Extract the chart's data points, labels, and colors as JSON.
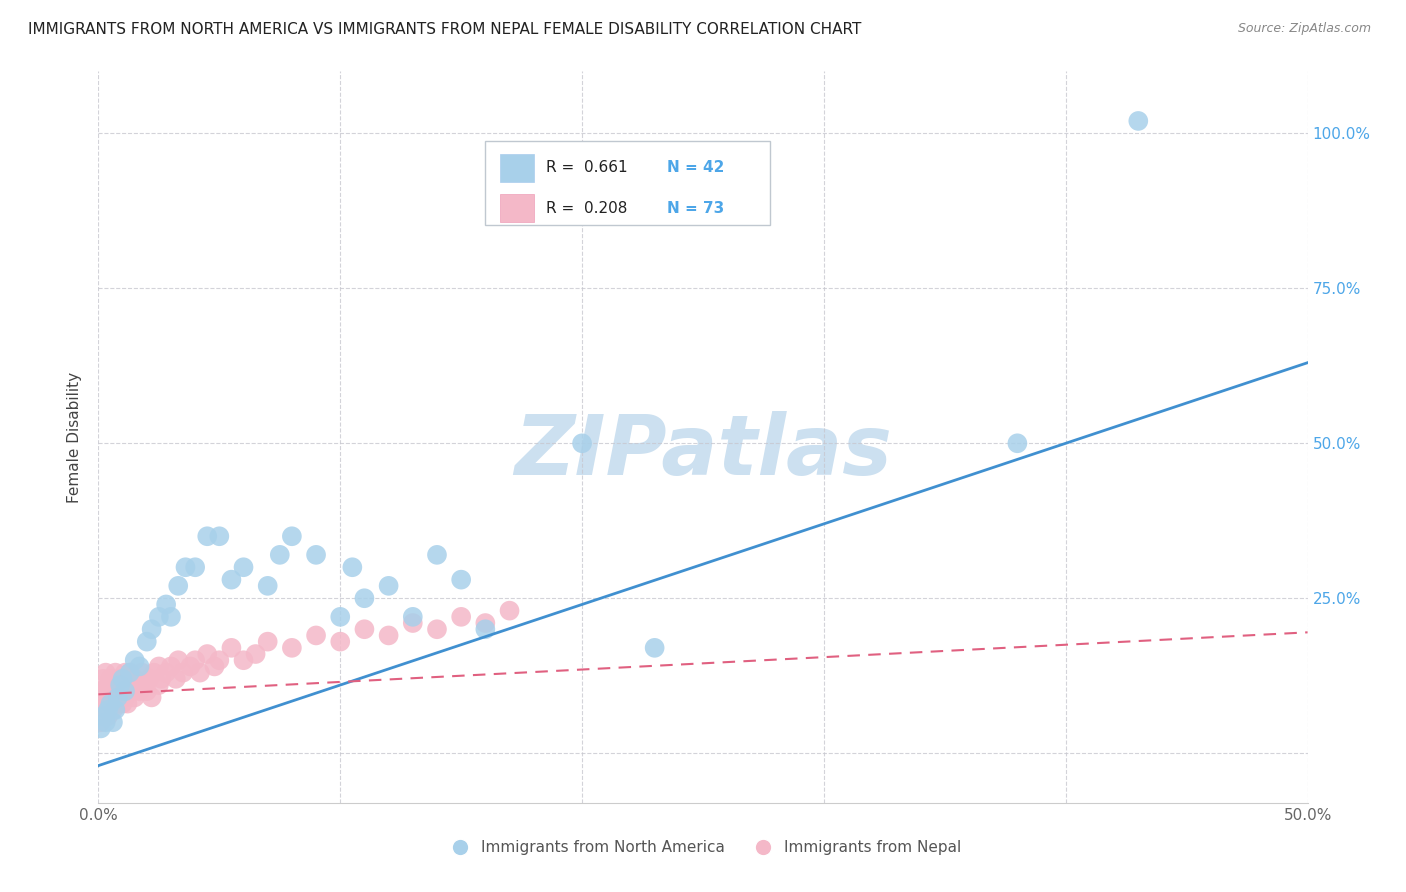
{
  "title": "IMMIGRANTS FROM NORTH AMERICA VS IMMIGRANTS FROM NEPAL FEMALE DISABILITY CORRELATION CHART",
  "source": "Source: ZipAtlas.com",
  "ylabel": "Female Disability",
  "xlim": [
    0.0,
    0.5
  ],
  "ylim": [
    -0.08,
    1.1
  ],
  "x_ticks": [
    0.0,
    0.1,
    0.2,
    0.3,
    0.4,
    0.5
  ],
  "x_tick_labels": [
    "0.0%",
    "",
    "",
    "",
    "",
    "50.0%"
  ],
  "y_ticks": [
    0.0,
    0.25,
    0.5,
    0.75,
    1.0
  ],
  "y_tick_labels": [
    "",
    "25.0%",
    "50.0%",
    "75.0%",
    "100.0%"
  ],
  "blue_color": "#a8d0ea",
  "pink_color": "#f4b8c8",
  "blue_line_color": "#4090d0",
  "pink_line_color": "#e06080",
  "blue_slope": 1.3,
  "blue_intercept": -0.02,
  "pink_slope": 0.2,
  "pink_intercept": 0.095,
  "bg_color": "#ffffff",
  "grid_color": "#c8c8d0",
  "watermark_color": "#cce0f0",
  "title_color": "#222222",
  "source_color": "#888888",
  "tick_label_color": "#4da6e8",
  "ylabel_color": "#444444",
  "legend_R1": "R =  0.661",
  "legend_N1": "N = 42",
  "legend_R2": "R =  0.208",
  "legend_N2": "N = 73",
  "na_x": [
    0.001,
    0.002,
    0.003,
    0.004,
    0.005,
    0.006,
    0.007,
    0.008,
    0.009,
    0.01,
    0.011,
    0.013,
    0.015,
    0.017,
    0.02,
    0.022,
    0.025,
    0.028,
    0.03,
    0.033,
    0.036,
    0.04,
    0.045,
    0.05,
    0.055,
    0.06,
    0.07,
    0.075,
    0.08,
    0.09,
    0.1,
    0.105,
    0.11,
    0.12,
    0.13,
    0.14,
    0.15,
    0.16,
    0.2,
    0.23,
    0.38,
    0.43
  ],
  "na_y": [
    0.04,
    0.06,
    0.05,
    0.07,
    0.08,
    0.05,
    0.07,
    0.09,
    0.11,
    0.12,
    0.1,
    0.13,
    0.15,
    0.14,
    0.18,
    0.2,
    0.22,
    0.24,
    0.22,
    0.27,
    0.3,
    0.3,
    0.35,
    0.35,
    0.28,
    0.3,
    0.27,
    0.32,
    0.35,
    0.32,
    0.22,
    0.3,
    0.25,
    0.27,
    0.22,
    0.32,
    0.28,
    0.2,
    0.5,
    0.17,
    0.5,
    1.02
  ],
  "nepal_x": [
    0.001,
    0.001,
    0.001,
    0.002,
    0.002,
    0.002,
    0.003,
    0.003,
    0.003,
    0.003,
    0.004,
    0.004,
    0.004,
    0.005,
    0.005,
    0.005,
    0.006,
    0.006,
    0.006,
    0.007,
    0.007,
    0.008,
    0.008,
    0.008,
    0.009,
    0.009,
    0.01,
    0.01,
    0.011,
    0.011,
    0.012,
    0.012,
    0.013,
    0.013,
    0.014,
    0.015,
    0.015,
    0.016,
    0.017,
    0.018,
    0.019,
    0.02,
    0.021,
    0.022,
    0.023,
    0.025,
    0.025,
    0.026,
    0.028,
    0.03,
    0.032,
    0.033,
    0.035,
    0.038,
    0.04,
    0.042,
    0.045,
    0.048,
    0.05,
    0.055,
    0.06,
    0.065,
    0.07,
    0.08,
    0.09,
    0.1,
    0.11,
    0.12,
    0.13,
    0.14,
    0.15,
    0.16,
    0.17
  ],
  "nepal_y": [
    0.05,
    0.07,
    0.1,
    0.06,
    0.09,
    0.12,
    0.07,
    0.1,
    0.08,
    0.13,
    0.06,
    0.11,
    0.09,
    0.08,
    0.12,
    0.1,
    0.07,
    0.11,
    0.09,
    0.1,
    0.13,
    0.08,
    0.12,
    0.1,
    0.09,
    0.11,
    0.08,
    0.12,
    0.09,
    0.13,
    0.1,
    0.08,
    0.11,
    0.13,
    0.1,
    0.09,
    0.12,
    0.11,
    0.1,
    0.13,
    0.11,
    0.1,
    0.12,
    0.09,
    0.13,
    0.11,
    0.14,
    0.12,
    0.13,
    0.14,
    0.12,
    0.15,
    0.13,
    0.14,
    0.15,
    0.13,
    0.16,
    0.14,
    0.15,
    0.17,
    0.15,
    0.16,
    0.18,
    0.17,
    0.19,
    0.18,
    0.2,
    0.19,
    0.21,
    0.2,
    0.22,
    0.21,
    0.23
  ]
}
